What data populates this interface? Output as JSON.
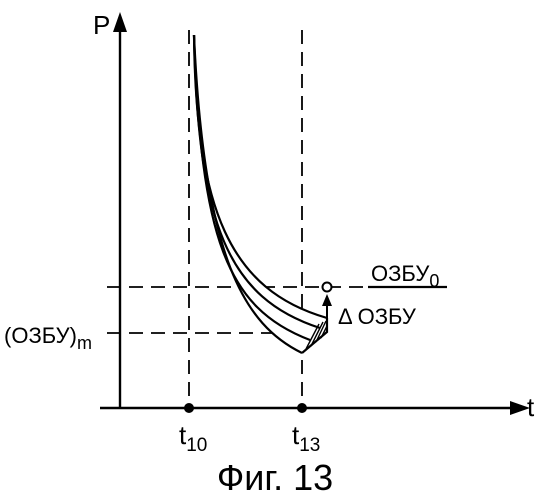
{
  "figure": {
    "caption": "Фиг. 13",
    "axes": {
      "y_label": "P",
      "x_label": "t"
    },
    "time_marks": [
      {
        "base": "t",
        "sub": "10"
      },
      {
        "base": "t",
        "sub": "13"
      }
    ],
    "levels": {
      "ozbu0": {
        "base": "ОЗБУ",
        "sub": "0"
      },
      "ozbu_m": {
        "base": "(ОЗБУ)",
        "sub": "m"
      },
      "delta": "Δ ОЗБУ"
    }
  }
}
